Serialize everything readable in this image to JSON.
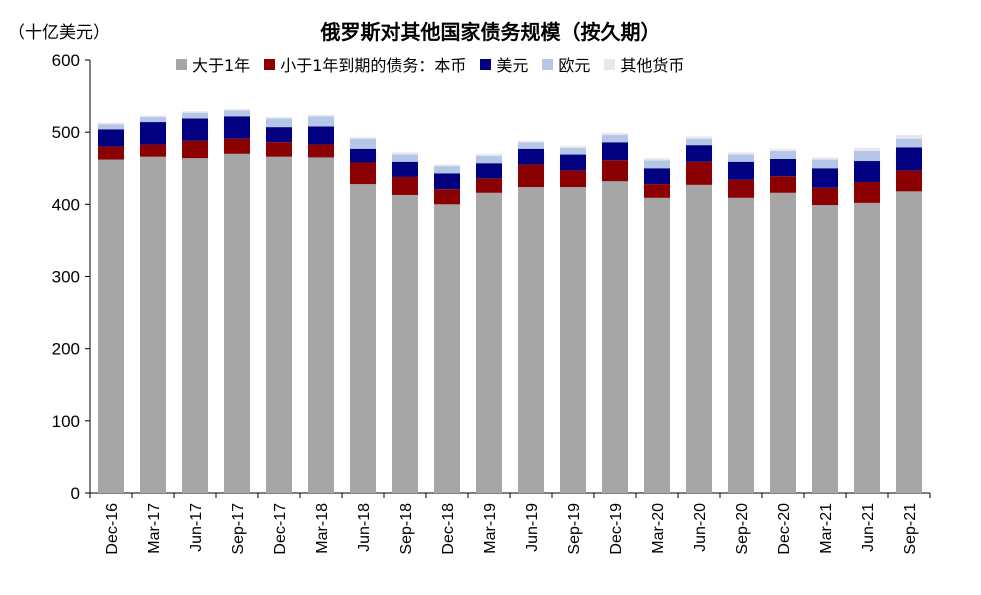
{
  "unit_label": "（十亿美元）",
  "chart_data": {
    "type": "bar",
    "stacked": true,
    "title": "俄罗斯对其他国家债务规模（按久期）",
    "xlabel": "",
    "ylabel": "",
    "ylim": [
      0,
      600
    ],
    "yticks": [
      0,
      100,
      200,
      300,
      400,
      500,
      600
    ],
    "grid": false,
    "legend_position": "top",
    "categories": [
      "Dec-16",
      "Mar-17",
      "Jun-17",
      "Sep-17",
      "Dec-17",
      "Mar-18",
      "Jun-18",
      "Sep-18",
      "Dec-18",
      "Mar-19",
      "Jun-19",
      "Sep-19",
      "Dec-19",
      "Mar-20",
      "Jun-20",
      "Sep-20",
      "Dec-20",
      "Mar-21",
      "Jun-21",
      "Sep-21"
    ],
    "series": [
      {
        "name": "大于1年",
        "color": "#A6A6A6",
        "values": [
          462,
          466,
          464,
          470,
          466,
          465,
          428,
          413,
          400,
          416,
          424,
          424,
          432,
          409,
          427,
          409,
          416,
          399,
          402,
          418
        ]
      },
      {
        "name": "小于1年到期的债务：本币",
        "color": "#8B0000",
        "values": [
          18,
          17,
          24,
          21,
          20,
          18,
          30,
          25,
          21,
          20,
          31,
          23,
          29,
          19,
          32,
          25,
          23,
          24,
          29,
          29
        ]
      },
      {
        "name": "美元",
        "color": "#000080",
        "values": [
          24,
          31,
          31,
          31,
          21,
          25,
          19,
          21,
          22,
          21,
          22,
          22,
          25,
          22,
          23,
          25,
          24,
          27,
          29,
          32
        ]
      },
      {
        "name": "欧元",
        "color": "#B4C7E7",
        "values": [
          7,
          7,
          8,
          8,
          12,
          14,
          14,
          10,
          10,
          10,
          9,
          9,
          10,
          11,
          9,
          10,
          11,
          12,
          14,
          12
        ]
      },
      {
        "name": "其他货币",
        "color": "#E8E6F0",
        "values": [
          2,
          2,
          2,
          2,
          2,
          2,
          2,
          3,
          2,
          3,
          2,
          3,
          3,
          3,
          3,
          3,
          3,
          3,
          4,
          5
        ]
      }
    ]
  }
}
